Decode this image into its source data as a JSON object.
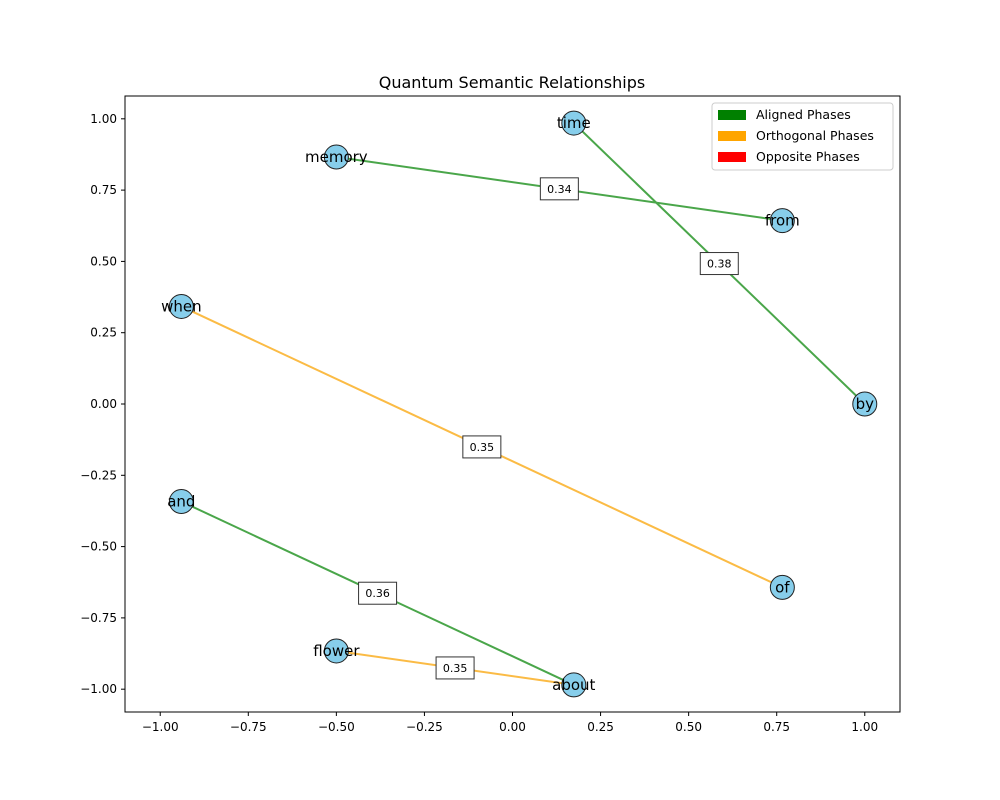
{
  "chart_data": {
    "type": "network",
    "title": "Quantum Semantic Relationships",
    "xlim": [
      -1.1,
      1.1
    ],
    "ylim": [
      -1.08,
      1.08
    ],
    "xticks": [
      -1.0,
      -0.75,
      -0.5,
      -0.25,
      0.0,
      0.25,
      0.5,
      0.75,
      1.0
    ],
    "xtick_labels": [
      "−1.00",
      "−0.75",
      "−0.50",
      "−0.25",
      "0.00",
      "0.25",
      "0.50",
      "0.75",
      "1.00"
    ],
    "yticks": [
      1.0,
      0.75,
      0.5,
      0.25,
      0.0,
      -0.25,
      -0.5,
      -0.75,
      -1.0
    ],
    "ytick_labels": [
      "1.00",
      "0.75",
      "0.50",
      "0.25",
      "0.00",
      "−0.25",
      "−0.50",
      "−0.75",
      "−1.00"
    ],
    "nodes": [
      {
        "id": "time",
        "x": 0.174,
        "y": 0.985
      },
      {
        "id": "memory",
        "x": -0.5,
        "y": 0.866
      },
      {
        "id": "from",
        "x": 0.766,
        "y": 0.643
      },
      {
        "id": "when",
        "x": -0.94,
        "y": 0.342
      },
      {
        "id": "by",
        "x": 1.0,
        "y": 0.0
      },
      {
        "id": "and",
        "x": -0.94,
        "y": -0.342
      },
      {
        "id": "of",
        "x": 0.766,
        "y": -0.643
      },
      {
        "id": "flower",
        "x": -0.5,
        "y": -0.866
      },
      {
        "id": "about",
        "x": 0.174,
        "y": -0.985
      }
    ],
    "edges": [
      {
        "source": "memory",
        "target": "from",
        "weight": "0.34",
        "phase": "aligned"
      },
      {
        "source": "time",
        "target": "by",
        "weight": "0.38",
        "phase": "aligned"
      },
      {
        "source": "when",
        "target": "of",
        "weight": "0.35",
        "phase": "orthogonal"
      },
      {
        "source": "and",
        "target": "about",
        "weight": "0.36",
        "phase": "aligned"
      },
      {
        "source": "flower",
        "target": "about",
        "weight": "0.35",
        "phase": "orthogonal"
      }
    ],
    "legend_position": "top-right",
    "legend": [
      {
        "key": "aligned",
        "label": "Aligned Phases",
        "color": "#008000"
      },
      {
        "key": "orthogonal",
        "label": "Orthogonal Phases",
        "color": "#ffa500"
      },
      {
        "key": "opposite",
        "label": "Opposite Phases",
        "color": "#ff0000"
      }
    ],
    "node_color": "#87ceeb",
    "edge_colors": {
      "aligned": "#4aa64a",
      "orthogonal": "#fbbb45",
      "opposite": "#ff0000"
    }
  }
}
